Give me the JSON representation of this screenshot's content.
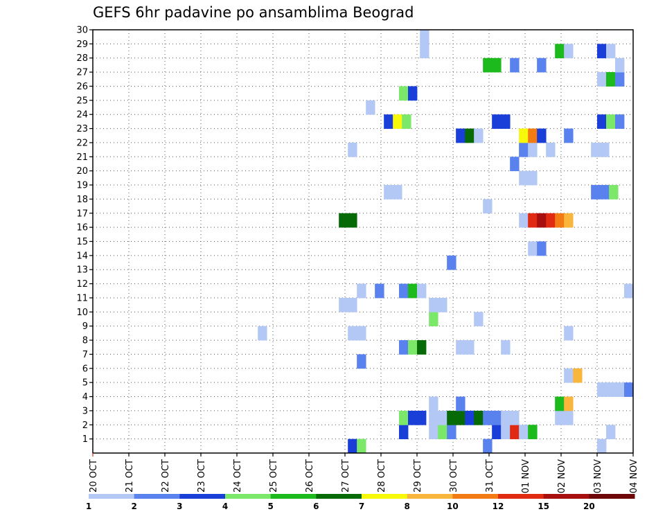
{
  "chart_data": {
    "type": "heatmap",
    "title": "GEFS 6hr padavine po ansamblima Beograd",
    "xlabel": "",
    "ylabel": "",
    "x_ticks": [
      "20 OCT",
      "21 OCT",
      "22 OCT",
      "23 OCT",
      "24 OCT",
      "25 OCT",
      "26 OCT",
      "27 OCT",
      "28 OCT",
      "29 OCT",
      "30 OCT",
      "31 OCT",
      "01 NOV",
      "02 NOV",
      "03 NOV",
      "04 NOV"
    ],
    "xlim_days": [
      0,
      15
    ],
    "y_ticks": [
      "1",
      "2",
      "3",
      "4",
      "5",
      "6",
      "7",
      "8",
      "9",
      "10",
      "11",
      "12",
      "13",
      "14",
      "15",
      "16",
      "17",
      "18",
      "19",
      "20",
      "21",
      "22",
      "23",
      "24",
      "25",
      "26",
      "27",
      "28",
      "29",
      "30"
    ],
    "ylim": [
      0,
      30
    ],
    "grid": true,
    "colorbar": {
      "labels": [
        "1",
        "2",
        "3",
        "4",
        "5",
        "6",
        "7",
        "8",
        "10",
        "12",
        "15",
        "20"
      ],
      "colors": [
        "#b4c8f5",
        "#5a82ee",
        "#1a3fd8",
        "#7ce86a",
        "#1cba1c",
        "#066b06",
        "#f8f80a",
        "#f9b63c",
        "#f37b13",
        "#e02a12",
        "#a80f0f",
        "#6e0707"
      ]
    },
    "cells": [
      {
        "x": 7.08,
        "y": 0,
        "c": 3
      },
      {
        "x": 7.33,
        "y": 0,
        "c": 4
      },
      {
        "x": 10.83,
        "y": 0,
        "c": 2
      },
      {
        "x": 14.0,
        "y": 0,
        "c": 1
      },
      {
        "x": 8.5,
        "y": 1,
        "c": 3
      },
      {
        "x": 9.33,
        "y": 1,
        "c": 1
      },
      {
        "x": 9.58,
        "y": 1,
        "c": 4
      },
      {
        "x": 9.83,
        "y": 1,
        "c": 2
      },
      {
        "x": 11.08,
        "y": 1,
        "c": 3
      },
      {
        "x": 11.33,
        "y": 1,
        "c": 1
      },
      {
        "x": 11.58,
        "y": 1,
        "c": 10
      },
      {
        "x": 11.83,
        "y": 1,
        "c": 1
      },
      {
        "x": 12.08,
        "y": 1,
        "c": 5
      },
      {
        "x": 14.25,
        "y": 1,
        "c": 1
      },
      {
        "x": 8.5,
        "y": 2,
        "c": 4
      },
      {
        "x": 8.75,
        "y": 2,
        "c": 3
      },
      {
        "x": 9.0,
        "y": 2,
        "c": 3
      },
      {
        "x": 9.33,
        "y": 2,
        "c": 1
      },
      {
        "x": 9.58,
        "y": 2,
        "c": 1
      },
      {
        "x": 9.83,
        "y": 2,
        "c": 6
      },
      {
        "x": 10.08,
        "y": 2,
        "c": 6
      },
      {
        "x": 10.33,
        "y": 2,
        "c": 3
      },
      {
        "x": 10.58,
        "y": 2,
        "c": 6
      },
      {
        "x": 10.83,
        "y": 2,
        "c": 2
      },
      {
        "x": 11.08,
        "y": 2,
        "c": 2
      },
      {
        "x": 11.33,
        "y": 2,
        "c": 1
      },
      {
        "x": 11.58,
        "y": 2,
        "c": 1
      },
      {
        "x": 12.83,
        "y": 2,
        "c": 1
      },
      {
        "x": 13.08,
        "y": 2,
        "c": 1
      },
      {
        "x": 9.33,
        "y": 3,
        "c": 1
      },
      {
        "x": 10.08,
        "y": 3,
        "c": 2
      },
      {
        "x": 12.83,
        "y": 3,
        "c": 5
      },
      {
        "x": 13.08,
        "y": 3,
        "c": 8
      },
      {
        "x": 14.0,
        "y": 4,
        "c": 1
      },
      {
        "x": 14.25,
        "y": 4,
        "c": 1
      },
      {
        "x": 14.5,
        "y": 4,
        "c": 1
      },
      {
        "x": 14.75,
        "y": 4,
        "c": 2
      },
      {
        "x": 13.08,
        "y": 5,
        "c": 1
      },
      {
        "x": 13.33,
        "y": 5,
        "c": 8
      },
      {
        "x": 7.33,
        "y": 6,
        "c": 2
      },
      {
        "x": 8.5,
        "y": 7,
        "c": 2
      },
      {
        "x": 8.75,
        "y": 7,
        "c": 4
      },
      {
        "x": 9.0,
        "y": 7,
        "c": 6
      },
      {
        "x": 10.08,
        "y": 7,
        "c": 1
      },
      {
        "x": 10.33,
        "y": 7,
        "c": 1
      },
      {
        "x": 11.33,
        "y": 7,
        "c": 1
      },
      {
        "x": 4.58,
        "y": 8,
        "c": 1
      },
      {
        "x": 7.08,
        "y": 8,
        "c": 1
      },
      {
        "x": 7.33,
        "y": 8,
        "c": 1
      },
      {
        "x": 13.08,
        "y": 8,
        "c": 1
      },
      {
        "x": 9.33,
        "y": 9,
        "c": 4
      },
      {
        "x": 10.58,
        "y": 9,
        "c": 1
      },
      {
        "x": 6.83,
        "y": 10,
        "c": 1
      },
      {
        "x": 7.08,
        "y": 10,
        "c": 1
      },
      {
        "x": 9.33,
        "y": 10,
        "c": 1
      },
      {
        "x": 9.58,
        "y": 10,
        "c": 1
      },
      {
        "x": 7.33,
        "y": 11,
        "c": 1
      },
      {
        "x": 7.83,
        "y": 11,
        "c": 2
      },
      {
        "x": 8.5,
        "y": 11,
        "c": 2
      },
      {
        "x": 8.75,
        "y": 11,
        "c": 5
      },
      {
        "x": 9.0,
        "y": 11,
        "c": 1
      },
      {
        "x": 14.75,
        "y": 11,
        "c": 1
      },
      {
        "x": 9.83,
        "y": 13,
        "c": 2
      },
      {
        "x": 12.08,
        "y": 14,
        "c": 1
      },
      {
        "x": 12.33,
        "y": 14,
        "c": 2
      },
      {
        "x": 11.83,
        "y": 16,
        "c": 1
      },
      {
        "x": 12.08,
        "y": 16,
        "c": 10
      },
      {
        "x": 12.33,
        "y": 16,
        "c": 11
      },
      {
        "x": 12.58,
        "y": 16,
        "c": 10
      },
      {
        "x": 12.83,
        "y": 16,
        "c": 9
      },
      {
        "x": 13.08,
        "y": 16,
        "c": 8
      },
      {
        "x": 6.83,
        "y": 16,
        "c": 6
      },
      {
        "x": 7.08,
        "y": 16,
        "c": 6
      },
      {
        "x": 10.83,
        "y": 17,
        "c": 1
      },
      {
        "x": 8.08,
        "y": 18,
        "c": 1
      },
      {
        "x": 8.33,
        "y": 18,
        "c": 1
      },
      {
        "x": 13.83,
        "y": 18,
        "c": 2
      },
      {
        "x": 14.08,
        "y": 18,
        "c": 2
      },
      {
        "x": 14.33,
        "y": 18,
        "c": 4
      },
      {
        "x": 11.83,
        "y": 19,
        "c": 1
      },
      {
        "x": 12.08,
        "y": 19,
        "c": 1
      },
      {
        "x": 11.58,
        "y": 20,
        "c": 2
      },
      {
        "x": 7.08,
        "y": 21,
        "c": 1
      },
      {
        "x": 11.83,
        "y": 21,
        "c": 2
      },
      {
        "x": 12.08,
        "y": 21,
        "c": 1
      },
      {
        "x": 12.58,
        "y": 21,
        "c": 1
      },
      {
        "x": 13.83,
        "y": 21,
        "c": 1
      },
      {
        "x": 14.08,
        "y": 21,
        "c": 1
      },
      {
        "x": 10.08,
        "y": 22,
        "c": 3
      },
      {
        "x": 10.33,
        "y": 22,
        "c": 6
      },
      {
        "x": 10.58,
        "y": 22,
        "c": 1
      },
      {
        "x": 11.83,
        "y": 22,
        "c": 7
      },
      {
        "x": 12.08,
        "y": 22,
        "c": 9
      },
      {
        "x": 12.33,
        "y": 22,
        "c": 3
      },
      {
        "x": 13.08,
        "y": 22,
        "c": 2
      },
      {
        "x": 8.08,
        "y": 23,
        "c": 3
      },
      {
        "x": 8.33,
        "y": 23,
        "c": 7
      },
      {
        "x": 8.58,
        "y": 23,
        "c": 4
      },
      {
        "x": 11.08,
        "y": 23,
        "c": 3
      },
      {
        "x": 11.33,
        "y": 23,
        "c": 3
      },
      {
        "x": 14.0,
        "y": 23,
        "c": 3
      },
      {
        "x": 14.25,
        "y": 23,
        "c": 4
      },
      {
        "x": 14.5,
        "y": 23,
        "c": 2
      },
      {
        "x": 7.58,
        "y": 24,
        "c": 1
      },
      {
        "x": 8.5,
        "y": 25,
        "c": 4
      },
      {
        "x": 8.75,
        "y": 25,
        "c": 3
      },
      {
        "x": 14.0,
        "y": 26,
        "c": 1
      },
      {
        "x": 14.25,
        "y": 26,
        "c": 5
      },
      {
        "x": 14.5,
        "y": 26,
        "c": 2
      },
      {
        "x": 10.83,
        "y": 27,
        "c": 5
      },
      {
        "x": 11.08,
        "y": 27,
        "c": 5
      },
      {
        "x": 11.58,
        "y": 27,
        "c": 2
      },
      {
        "x": 12.33,
        "y": 27,
        "c": 2
      },
      {
        "x": 14.5,
        "y": 27,
        "c": 1
      },
      {
        "x": 9.08,
        "y": 28,
        "c": 1
      },
      {
        "x": 12.83,
        "y": 28,
        "c": 5
      },
      {
        "x": 13.08,
        "y": 28,
        "c": 1
      },
      {
        "x": 14.0,
        "y": 28,
        "c": 3
      },
      {
        "x": 14.25,
        "y": 28,
        "c": 1
      },
      {
        "x": 9.08,
        "y": 29,
        "c": 1
      }
    ]
  }
}
